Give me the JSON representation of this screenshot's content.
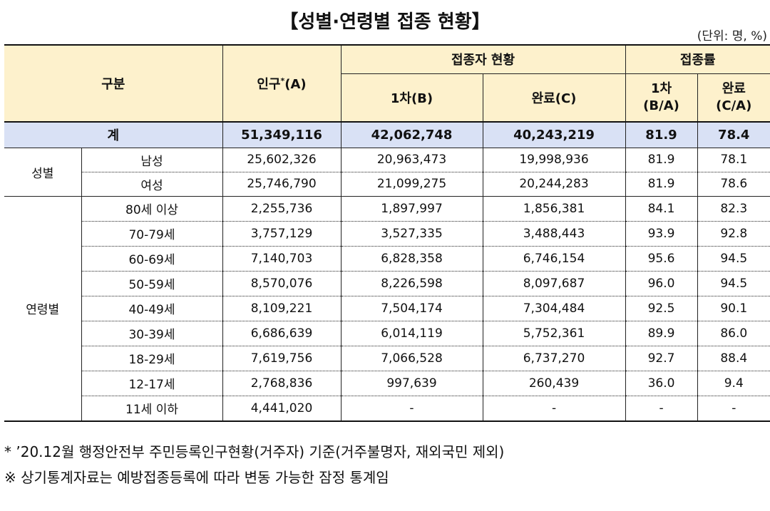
{
  "title": "【성별·연령별 접종 현황】",
  "unit": "(단위: 명, %)",
  "header": {
    "category": "구분",
    "population": "인구",
    "population_mark": "*",
    "population_suffix": "(A)",
    "vaccinated_group": "접종자 현황",
    "first": "1차(B)",
    "complete": "완료(C)",
    "rate_group": "접종률",
    "rate_first_line1": "1차",
    "rate_first_line2": "(B/A)",
    "rate_complete_line1": "완료",
    "rate_complete_line2": "(C/A)"
  },
  "total": {
    "label": "계",
    "population": "51,349,116",
    "first": "42,062,748",
    "complete": "40,243,219",
    "rate_first": "81.9",
    "rate_complete": "78.4"
  },
  "gender": {
    "group_label": "성별",
    "rows": [
      {
        "label": "남성",
        "population": "25,602,326",
        "first": "20,963,473",
        "complete": "19,998,936",
        "rate_first": "81.9",
        "rate_complete": "78.1"
      },
      {
        "label": "여성",
        "population": "25,746,790",
        "first": "21,099,275",
        "complete": "20,244,283",
        "rate_first": "81.9",
        "rate_complete": "78.6"
      }
    ]
  },
  "age": {
    "group_label": "연령별",
    "rows": [
      {
        "label": "80세 이상",
        "population": "2,255,736",
        "first": "1,897,997",
        "complete": "1,856,381",
        "rate_first": "84.1",
        "rate_complete": "82.3"
      },
      {
        "label": "70-79세",
        "population": "3,757,129",
        "first": "3,527,335",
        "complete": "3,488,443",
        "rate_first": "93.9",
        "rate_complete": "92.8"
      },
      {
        "label": "60-69세",
        "population": "7,140,703",
        "first": "6,828,358",
        "complete": "6,746,154",
        "rate_first": "95.6",
        "rate_complete": "94.5"
      },
      {
        "label": "50-59세",
        "population": "8,570,076",
        "first": "8,226,598",
        "complete": "8,097,687",
        "rate_first": "96.0",
        "rate_complete": "94.5"
      },
      {
        "label": "40-49세",
        "population": "8,109,221",
        "first": "7,504,174",
        "complete": "7,304,484",
        "rate_first": "92.5",
        "rate_complete": "90.1"
      },
      {
        "label": "30-39세",
        "population": "6,686,639",
        "first": "6,014,119",
        "complete": "5,752,361",
        "rate_first": "89.9",
        "rate_complete": "86.0"
      },
      {
        "label": "18-29세",
        "population": "7,619,756",
        "first": "7,066,528",
        "complete": "6,737,270",
        "rate_first": "92.7",
        "rate_complete": "88.4"
      },
      {
        "label": "12-17세",
        "population": "2,768,836",
        "first": "997,639",
        "complete": "260,439",
        "rate_first": "36.0",
        "rate_complete": "9.4"
      },
      {
        "label": "11세 이하",
        "population": "4,441,020",
        "first": "-",
        "complete": "-",
        "rate_first": "-",
        "rate_complete": "-"
      }
    ]
  },
  "notes": [
    "* ’20.12월 행정안전부 주민등록인구현황(거주자) 기준(거주불명자, 재외국민 제외)",
    "※ 상기통계자료는 예방접종등록에 따라 변동 가능한 잠정 통계임"
  ]
}
